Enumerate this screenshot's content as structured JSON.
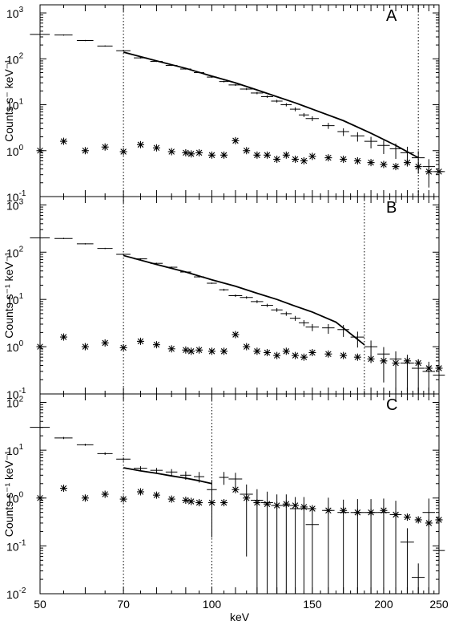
{
  "chart_data": [
    {
      "type": "scatter",
      "panel": "A",
      "title": "",
      "xlabel": "",
      "ylabel": "Counts s⁻ keV⁻¹",
      "xscale": "log",
      "yscale": "log",
      "xlim": [
        50,
        250
      ],
      "ylim": [
        0.1,
        1500
      ],
      "yticks": [
        {
          "value": 0.1,
          "base": "10",
          "exp": "-1"
        },
        {
          "value": 1,
          "base": "10",
          "exp": "0"
        },
        {
          "value": 10,
          "base": "10",
          "exp": "1"
        },
        {
          "value": 100,
          "base": "10",
          "exp": "2"
        },
        {
          "value": 1000,
          "base": "10",
          "exp": "3"
        }
      ],
      "vlines": [
        70,
        230
      ],
      "series": [
        {
          "kind": "crosses",
          "x": [
            50,
            55,
            60,
            65,
            70,
            75,
            80,
            85,
            90,
            95,
            100,
            105,
            110,
            115,
            120,
            125,
            130,
            135,
            140,
            145,
            150,
            160,
            170,
            180,
            190,
            200,
            210,
            220,
            230,
            240,
            250
          ],
          "xerr": [
            2,
            2,
            2,
            2,
            2,
            2,
            2,
            2,
            2,
            2,
            2,
            2,
            3,
            3,
            3,
            3,
            3,
            3,
            3,
            3,
            4,
            4,
            4,
            5,
            5,
            5,
            5,
            6,
            6,
            6,
            6
          ],
          "y": [
            340,
            330,
            250,
            190,
            150,
            105,
            88,
            72,
            60,
            50,
            40,
            32,
            27,
            22,
            18,
            15,
            12,
            10,
            8,
            6,
            5,
            3.5,
            2.6,
            2.1,
            1.6,
            1.3,
            1.1,
            0.9,
            0.7,
            0.45,
            0.35
          ],
          "yerr_lo": [
            0.03,
            0.03,
            0.03,
            0.03,
            0.03,
            0.03,
            0.03,
            0.03,
            0.03,
            0.03,
            0.03,
            0.04,
            0.05,
            0.05,
            0.06,
            0.06,
            0.07,
            0.08,
            0.1,
            0.1,
            0.12,
            0.15,
            0.2,
            0.25,
            0.3,
            0.35,
            0.4,
            0.5,
            0.55,
            0.65,
            0.7
          ],
          "yerr_hi": [
            0.03,
            0.03,
            0.03,
            0.03,
            0.03,
            0.03,
            0.03,
            0.03,
            0.03,
            0.03,
            0.03,
            0.04,
            0.05,
            0.05,
            0.06,
            0.06,
            0.07,
            0.08,
            0.1,
            0.1,
            0.12,
            0.15,
            0.18,
            0.2,
            0.25,
            0.28,
            0.3,
            0.35,
            0.4,
            0.45,
            0.5
          ]
        },
        {
          "kind": "asterisks",
          "x": [
            50,
            55,
            60,
            65,
            70,
            75,
            80,
            85,
            90,
            92,
            95,
            100,
            105,
            110,
            115,
            120,
            125,
            130,
            135,
            140,
            145,
            150,
            160,
            170,
            180,
            190,
            200,
            210,
            220,
            230,
            240,
            250
          ],
          "y": [
            1.0,
            1.6,
            1.0,
            1.2,
            0.95,
            1.35,
            1.15,
            0.95,
            0.9,
            0.85,
            0.9,
            0.8,
            0.8,
            1.65,
            1.0,
            0.8,
            0.8,
            0.65,
            0.8,
            0.65,
            0.6,
            0.75,
            0.7,
            0.65,
            0.6,
            0.55,
            0.5,
            0.45,
            0.55,
            0.45,
            0.35,
            0.35
          ]
        },
        {
          "kind": "line",
          "x": [
            70,
            80,
            90,
            100,
            110,
            120,
            130,
            140,
            150,
            170,
            190,
            210,
            230
          ],
          "y": [
            140,
            90,
            62,
            42,
            30,
            21,
            15,
            11,
            8,
            4.5,
            2.4,
            1.3,
            0.7
          ]
        }
      ]
    },
    {
      "type": "scatter",
      "panel": "B",
      "title": "",
      "xlabel": "",
      "ylabel": "Counts s⁻¹ keV⁻¹",
      "xscale": "log",
      "yscale": "log",
      "xlim": [
        50,
        250
      ],
      "ylim": [
        0.1,
        1500
      ],
      "yticks": [
        {
          "value": 0.1,
          "base": "10",
          "exp": "-1"
        },
        {
          "value": 1,
          "base": "10",
          "exp": "0"
        },
        {
          "value": 10,
          "base": "10",
          "exp": "1"
        },
        {
          "value": 100,
          "base": "10",
          "exp": "2"
        },
        {
          "value": 1000,
          "base": "10",
          "exp": "3"
        }
      ],
      "vlines": [
        70,
        185
      ],
      "series": [
        {
          "kind": "crosses",
          "x": [
            50,
            55,
            60,
            65,
            70,
            75,
            80,
            85,
            90,
            95,
            100,
            105,
            110,
            115,
            120,
            125,
            130,
            135,
            140,
            145,
            150,
            160,
            170,
            180,
            190,
            200,
            210,
            220,
            230,
            240,
            250
          ],
          "xerr": [
            2,
            2,
            2,
            2,
            2,
            2,
            2,
            2,
            2,
            2,
            2,
            2,
            3,
            3,
            3,
            3,
            3,
            3,
            3,
            3,
            4,
            4,
            4,
            5,
            5,
            5,
            5,
            6,
            6,
            6,
            6
          ],
          "y": [
            200,
            195,
            150,
            120,
            90,
            72,
            58,
            48,
            38,
            30,
            22,
            16,
            12,
            11,
            9,
            7.5,
            6,
            5,
            4,
            3.2,
            2.6,
            2.5,
            2.3,
            1.6,
            1.0,
            0.7,
            0.55,
            0.45,
            0.35,
            0.3,
            0.25
          ],
          "yerr_lo": [
            0.03,
            0.03,
            0.03,
            0.03,
            0.03,
            0.03,
            0.03,
            0.03,
            0.03,
            0.03,
            0.03,
            0.05,
            0.06,
            0.06,
            0.07,
            0.08,
            0.09,
            0.1,
            0.12,
            0.15,
            0.18,
            0.25,
            0.3,
            0.4,
            0.55,
            0.75,
            0.85,
            0.9,
            0.9,
            0.95,
            0.95
          ],
          "yerr_hi": [
            0.03,
            0.03,
            0.03,
            0.03,
            0.03,
            0.03,
            0.03,
            0.03,
            0.03,
            0.03,
            0.03,
            0.05,
            0.06,
            0.06,
            0.07,
            0.08,
            0.09,
            0.1,
            0.12,
            0.14,
            0.16,
            0.2,
            0.25,
            0.3,
            0.35,
            0.4,
            0.45,
            0.5,
            0.55,
            0.6,
            0.6
          ]
        },
        {
          "kind": "asterisks",
          "x": [
            50,
            55,
            60,
            65,
            70,
            75,
            80,
            85,
            90,
            92,
            95,
            100,
            105,
            110,
            115,
            120,
            125,
            130,
            135,
            140,
            145,
            150,
            160,
            170,
            180,
            190,
            200,
            210,
            220,
            230,
            240,
            250
          ],
          "y": [
            1.0,
            1.6,
            1.0,
            1.2,
            0.95,
            1.3,
            1.1,
            0.9,
            0.85,
            0.8,
            0.85,
            0.8,
            0.8,
            1.8,
            1.0,
            0.8,
            0.75,
            0.65,
            0.8,
            0.65,
            0.6,
            0.75,
            0.7,
            0.65,
            0.6,
            0.55,
            0.5,
            0.45,
            0.5,
            0.45,
            0.35,
            0.35
          ]
        },
        {
          "kind": "line",
          "x": [
            70,
            80,
            90,
            100,
            110,
            120,
            130,
            140,
            150,
            165,
            185
          ],
          "y": [
            85,
            55,
            38,
            26,
            19,
            13.5,
            10,
            7.2,
            5.4,
            3.3,
            1.1
          ]
        }
      ]
    },
    {
      "type": "scatter",
      "panel": "C",
      "title": "",
      "xlabel": "keV",
      "ylabel": "Counts s⁻¹ keV⁻¹",
      "xscale": "log",
      "yscale": "log",
      "xlim": [
        50,
        250
      ],
      "ylim": [
        0.01,
        150
      ],
      "xticks": [
        50,
        70,
        100,
        150,
        200,
        250
      ],
      "yticks": [
        {
          "value": 0.01,
          "base": "10",
          "exp": "-2"
        },
        {
          "value": 0.1,
          "base": "10",
          "exp": "-1"
        },
        {
          "value": 1,
          "base": "10",
          "exp": "0"
        },
        {
          "value": 10,
          "base": "10",
          "exp": "1"
        },
        {
          "value": 100,
          "base": "10",
          "exp": "2"
        }
      ],
      "vlines": [
        70,
        100
      ],
      "series": [
        {
          "kind": "crosses",
          "x": [
            50,
            55,
            60,
            65,
            70,
            75,
            80,
            85,
            90,
            95,
            100,
            105,
            110,
            115,
            120,
            125,
            130,
            135,
            140,
            145,
            150,
            160,
            170,
            180,
            190,
            200,
            210,
            220,
            230,
            240,
            250
          ],
          "xerr": [
            2,
            2,
            2,
            2,
            2,
            2,
            2,
            2,
            2,
            2,
            2,
            2,
            3,
            3,
            3,
            3,
            3,
            3,
            3,
            3,
            4,
            4,
            4,
            5,
            5,
            5,
            5,
            6,
            6,
            6,
            6
          ],
          "y": [
            30,
            18,
            13,
            8.5,
            6.5,
            4.2,
            3.8,
            3.5,
            3.0,
            2.8,
            1.5,
            2.7,
            2.5,
            1.2,
            0.9,
            0.8,
            0.7,
            0.7,
            0.6,
            0.6,
            0.28,
            0.55,
            0.5,
            0.5,
            0.5,
            0.5,
            0.45,
            0.12,
            0.022,
            0.5,
            0.08
          ],
          "yerr_lo": [
            0.06,
            0.05,
            0.05,
            0.06,
            0.08,
            0.1,
            0.12,
            0.15,
            0.2,
            0.25,
            0.9,
            0.3,
            0.35,
            0.95,
            0.99,
            0.99,
            0.99,
            0.99,
            0.99,
            0.99,
            0.99,
            0.99,
            0.99,
            0.99,
            0.99,
            0.99,
            0.99,
            0.99,
            0.99,
            0.99,
            0.99
          ],
          "yerr_hi": [
            0.06,
            0.05,
            0.05,
            0.06,
            0.08,
            0.1,
            0.12,
            0.15,
            0.2,
            0.25,
            0.6,
            0.3,
            0.35,
            0.6,
            0.7,
            0.7,
            0.7,
            0.7,
            0.75,
            0.75,
            0.8,
            0.85,
            0.85,
            0.9,
            0.9,
            0.95,
            0.95,
            0.95,
            0.95,
            0.95,
            0.95
          ]
        },
        {
          "kind": "asterisks",
          "x": [
            50,
            55,
            60,
            65,
            70,
            75,
            80,
            85,
            90,
            92,
            95,
            100,
            105,
            110,
            115,
            120,
            125,
            130,
            135,
            140,
            145,
            150,
            160,
            170,
            180,
            190,
            200,
            210,
            220,
            230,
            240,
            250
          ],
          "y": [
            1.0,
            1.6,
            1.0,
            1.2,
            0.95,
            1.35,
            1.15,
            0.95,
            0.9,
            0.85,
            0.8,
            0.8,
            0.8,
            1.5,
            1.0,
            0.8,
            0.75,
            0.7,
            0.75,
            0.7,
            0.65,
            0.6,
            0.55,
            0.55,
            0.5,
            0.5,
            0.55,
            0.45,
            0.4,
            0.35,
            0.3,
            0.35
          ]
        },
        {
          "kind": "line",
          "x": [
            70,
            75,
            80,
            85,
            90,
            95,
            100
          ],
          "y": [
            4.3,
            3.7,
            3.3,
            2.9,
            2.6,
            2.3,
            2.0
          ]
        }
      ]
    }
  ]
}
